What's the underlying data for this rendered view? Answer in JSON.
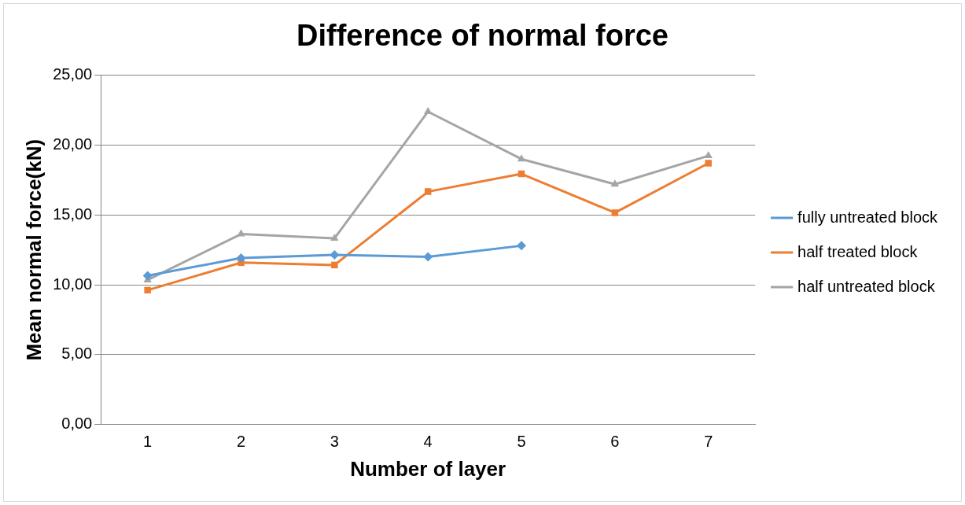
{
  "chart_data": {
    "type": "line",
    "title": "Difference of normal force",
    "xlabel": "Number of layer",
    "ylabel": "Mean normal force(kN)",
    "categories": [
      "1",
      "2",
      "3",
      "4",
      "5",
      "6",
      "7"
    ],
    "series": [
      {
        "name": "fully untreated block",
        "color": "#5b9bd5",
        "marker": "diamond",
        "values": [
          10.65,
          11.92,
          12.15,
          12.0,
          12.8,
          null,
          null
        ]
      },
      {
        "name": "half treated block",
        "color": "#ed7d31",
        "marker": "square",
        "values": [
          9.62,
          11.59,
          11.42,
          16.67,
          17.94,
          15.16,
          18.7
        ]
      },
      {
        "name": "half untreated block",
        "color": "#a5a5a5",
        "marker": "triangle",
        "values": [
          10.35,
          13.63,
          13.33,
          22.39,
          19.0,
          17.2,
          19.23
        ]
      }
    ],
    "ylim": [
      0,
      25
    ],
    "yticks": [
      {
        "value": 0,
        "label": "0,00"
      },
      {
        "value": 5,
        "label": "5,00"
      },
      {
        "value": 10,
        "label": "10,00"
      },
      {
        "value": 15,
        "label": "15,00"
      },
      {
        "value": 20,
        "label": "20,00"
      },
      {
        "value": 25,
        "label": "25,00"
      }
    ],
    "grid": "y",
    "legend": "right",
    "line_style": "solid"
  }
}
